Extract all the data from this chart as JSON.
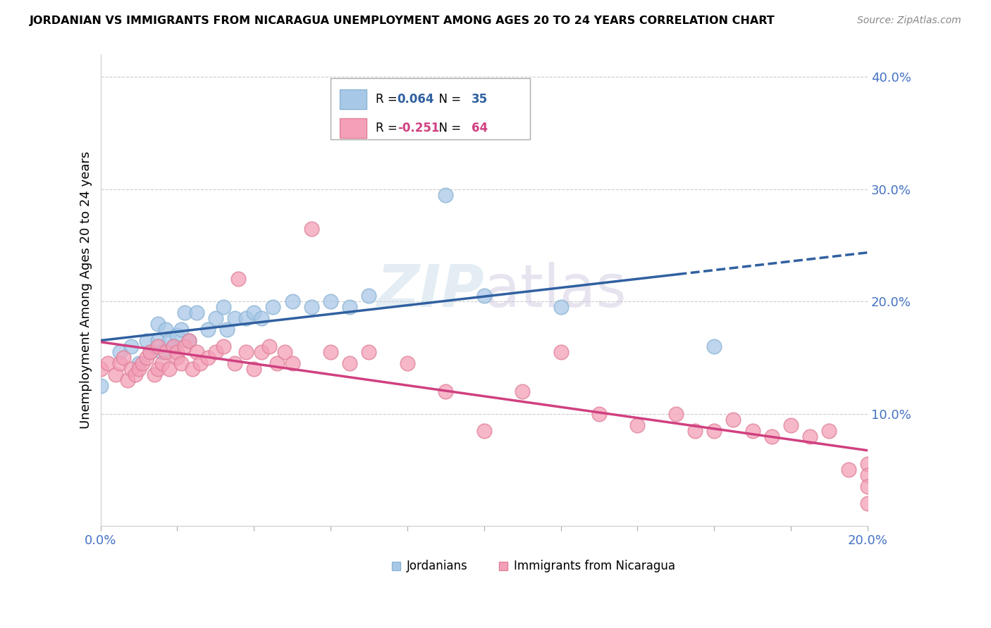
{
  "title": "JORDANIAN VS IMMIGRANTS FROM NICARAGUA UNEMPLOYMENT AMONG AGES 20 TO 24 YEARS CORRELATION CHART",
  "source": "Source: ZipAtlas.com",
  "ylabel": "Unemployment Among Ages 20 to 24 years",
  "xlim": [
    0.0,
    0.2
  ],
  "ylim": [
    0.0,
    0.42
  ],
  "yticks": [
    0.1,
    0.2,
    0.3,
    0.4
  ],
  "ytick_labels": [
    "10.0%",
    "20.0%",
    "30.0%",
    "40.0%"
  ],
  "jordanians_R": 0.064,
  "jordanians_N": 35,
  "nicaragua_R": -0.251,
  "nicaragua_N": 64,
  "legend_label_1": "Jordanians",
  "legend_label_2": "Immigrants from Nicaragua",
  "blue_color": "#a8c8e8",
  "blue_edge_color": "#8ab4d4",
  "pink_color": "#f4a0b8",
  "pink_edge_color": "#e08098",
  "blue_line_color": "#3060a0",
  "pink_line_color": "#d04080",
  "watermark_color": "#d8e8f0",
  "background_color": "#ffffff",
  "blue_scatter_x": [
    0.0,
    0.005,
    0.008,
    0.01,
    0.012,
    0.013,
    0.015,
    0.015,
    0.016,
    0.017,
    0.018,
    0.019,
    0.02,
    0.021,
    0.022,
    0.023,
    0.025,
    0.028,
    0.03,
    0.032,
    0.033,
    0.035,
    0.038,
    0.04,
    0.042,
    0.045,
    0.05,
    0.055,
    0.06,
    0.065,
    0.07,
    0.09,
    0.1,
    0.12,
    0.16
  ],
  "blue_scatter_y": [
    0.125,
    0.155,
    0.16,
    0.145,
    0.165,
    0.155,
    0.18,
    0.165,
    0.155,
    0.175,
    0.165,
    0.16,
    0.17,
    0.175,
    0.19,
    0.165,
    0.19,
    0.175,
    0.185,
    0.195,
    0.175,
    0.185,
    0.185,
    0.19,
    0.185,
    0.195,
    0.2,
    0.195,
    0.2,
    0.195,
    0.205,
    0.295,
    0.205,
    0.195,
    0.16
  ],
  "pink_scatter_x": [
    0.0,
    0.002,
    0.004,
    0.005,
    0.006,
    0.007,
    0.008,
    0.009,
    0.01,
    0.011,
    0.012,
    0.013,
    0.014,
    0.015,
    0.015,
    0.016,
    0.017,
    0.018,
    0.019,
    0.02,
    0.02,
    0.021,
    0.022,
    0.023,
    0.024,
    0.025,
    0.026,
    0.028,
    0.03,
    0.032,
    0.035,
    0.036,
    0.038,
    0.04,
    0.042,
    0.044,
    0.046,
    0.048,
    0.05,
    0.055,
    0.06,
    0.065,
    0.07,
    0.08,
    0.09,
    0.1,
    0.11,
    0.12,
    0.13,
    0.14,
    0.15,
    0.155,
    0.16,
    0.165,
    0.17,
    0.175,
    0.18,
    0.185,
    0.19,
    0.195,
    0.2,
    0.2,
    0.2,
    0.2
  ],
  "pink_scatter_y": [
    0.14,
    0.145,
    0.135,
    0.145,
    0.15,
    0.13,
    0.14,
    0.135,
    0.14,
    0.145,
    0.15,
    0.155,
    0.135,
    0.16,
    0.14,
    0.145,
    0.155,
    0.14,
    0.16,
    0.15,
    0.155,
    0.145,
    0.16,
    0.165,
    0.14,
    0.155,
    0.145,
    0.15,
    0.155,
    0.16,
    0.145,
    0.22,
    0.155,
    0.14,
    0.155,
    0.16,
    0.145,
    0.155,
    0.145,
    0.265,
    0.155,
    0.145,
    0.155,
    0.145,
    0.12,
    0.085,
    0.12,
    0.155,
    0.1,
    0.09,
    0.1,
    0.085,
    0.085,
    0.095,
    0.085,
    0.08,
    0.09,
    0.08,
    0.085,
    0.05,
    0.055,
    0.045,
    0.035,
    0.02
  ]
}
